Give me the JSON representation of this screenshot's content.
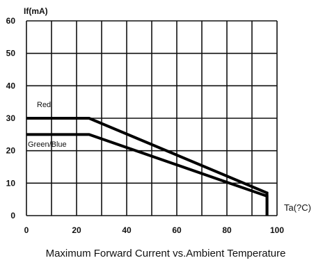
{
  "chart_data": {
    "type": "line",
    "title": "Maximum Forward Current vs.Ambient Temperature",
    "xlabel": "Ta(?C)",
    "ylabel": "If(mA)",
    "xlim": [
      0,
      100
    ],
    "ylim": [
      0,
      60
    ],
    "x_ticks": [
      "0",
      "20",
      "40",
      "60",
      "80",
      "100"
    ],
    "y_ticks": [
      "0",
      "10",
      "20",
      "30",
      "40",
      "50",
      "60"
    ],
    "grid": true,
    "series": [
      {
        "name": "Red",
        "x": [
          0,
          25,
          96,
          96
        ],
        "y": [
          30,
          30,
          7,
          0
        ],
        "color": "#000000"
      },
      {
        "name": "Green/Blue",
        "x": [
          0,
          25,
          96,
          96
        ],
        "y": [
          25,
          25,
          6,
          0
        ],
        "color": "#000000"
      }
    ]
  }
}
